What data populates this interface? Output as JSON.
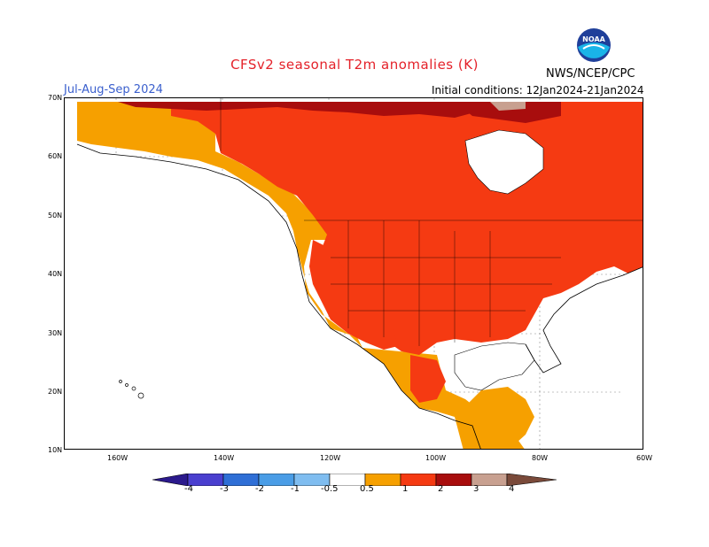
{
  "header": {
    "title": "CFSv2 seasonal T2m anomalies (K)",
    "period": "Jul-Aug-Sep 2024",
    "initial_conditions": "Initial conditions: 12Jan2024-21Jan2024",
    "agency": "NWS/NCEP/CPC",
    "logo_text": "NOAA"
  },
  "axes": {
    "lat_labels": [
      "70N",
      "60N",
      "50N",
      "40N",
      "30N",
      "20N",
      "10N"
    ],
    "lon_labels": [
      "160W",
      "140W",
      "120W",
      "100W",
      "80W",
      "60W"
    ]
  },
  "legend": {
    "labels": [
      "-4",
      "-3",
      "-2",
      "-1",
      "-0.5",
      "0.5",
      "1",
      "2",
      "3",
      "4"
    ],
    "colors": [
      "#2b1a8c",
      "#4a3fcf",
      "#2f6fd6",
      "#4a9de6",
      "#7fbdf0",
      "#ffffff",
      "#f6a000",
      "#f53a12",
      "#a80d0d",
      "#c8a090",
      "#7a4a3a"
    ]
  },
  "colors": {
    "title_red": "#e4222a",
    "period_blue": "#3a5fcd",
    "land_outline": "#000000",
    "anomaly_0.5_1": "#f6a000",
    "anomaly_1_2": "#f53a12",
    "anomaly_2_3": "#a80d0d",
    "anomaly_3_4": "#c8a090"
  }
}
